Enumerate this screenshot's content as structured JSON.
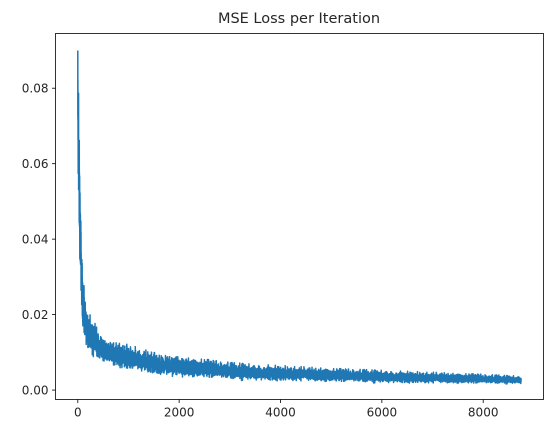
{
  "chart_data": {
    "type": "line",
    "title": "MSE Loss per Iteration",
    "xlabel": "",
    "ylabel": "",
    "xlim": [
      -440,
      9190
    ],
    "ylim": [
      -0.0025,
      0.0945
    ],
    "x_ticks": [
      0,
      2000,
      4000,
      6000,
      8000
    ],
    "x_tick_labels": [
      "0",
      "2000",
      "4000",
      "6000",
      "8000"
    ],
    "y_ticks": [
      0.0,
      0.02,
      0.04,
      0.06,
      0.08
    ],
    "y_tick_labels": [
      "0.00",
      "0.02",
      "0.04",
      "0.06",
      "0.08"
    ],
    "grid": false,
    "legend": "none",
    "series": [
      {
        "color": "#1f77b4",
        "n_points": 8750,
        "envelope": {
          "x": [
            0,
            10,
            25,
            50,
            75,
            100,
            150,
            200,
            300,
            400,
            500,
            700,
            1000,
            1500,
            2000,
            2500,
            3000,
            3500,
            4000,
            5000,
            6000,
            7000,
            8000,
            8750
          ],
          "upper": [
            0.09,
            0.082,
            0.07,
            0.052,
            0.038,
            0.03,
            0.022,
            0.02,
            0.018,
            0.015,
            0.0135,
            0.012,
            0.0115,
            0.0095,
            0.0085,
            0.0078,
            0.007,
            0.0065,
            0.0062,
            0.0055,
            0.005,
            0.0045,
            0.004,
            0.0035
          ],
          "lower": [
            0.056,
            0.048,
            0.04,
            0.03,
            0.022,
            0.016,
            0.012,
            0.011,
            0.0095,
            0.0085,
            0.0075,
            0.0065,
            0.0055,
            0.0045,
            0.0038,
            0.0034,
            0.003,
            0.0028,
            0.0026,
            0.0023,
            0.0021,
            0.0019,
            0.0018,
            0.0018
          ]
        }
      }
    ]
  }
}
